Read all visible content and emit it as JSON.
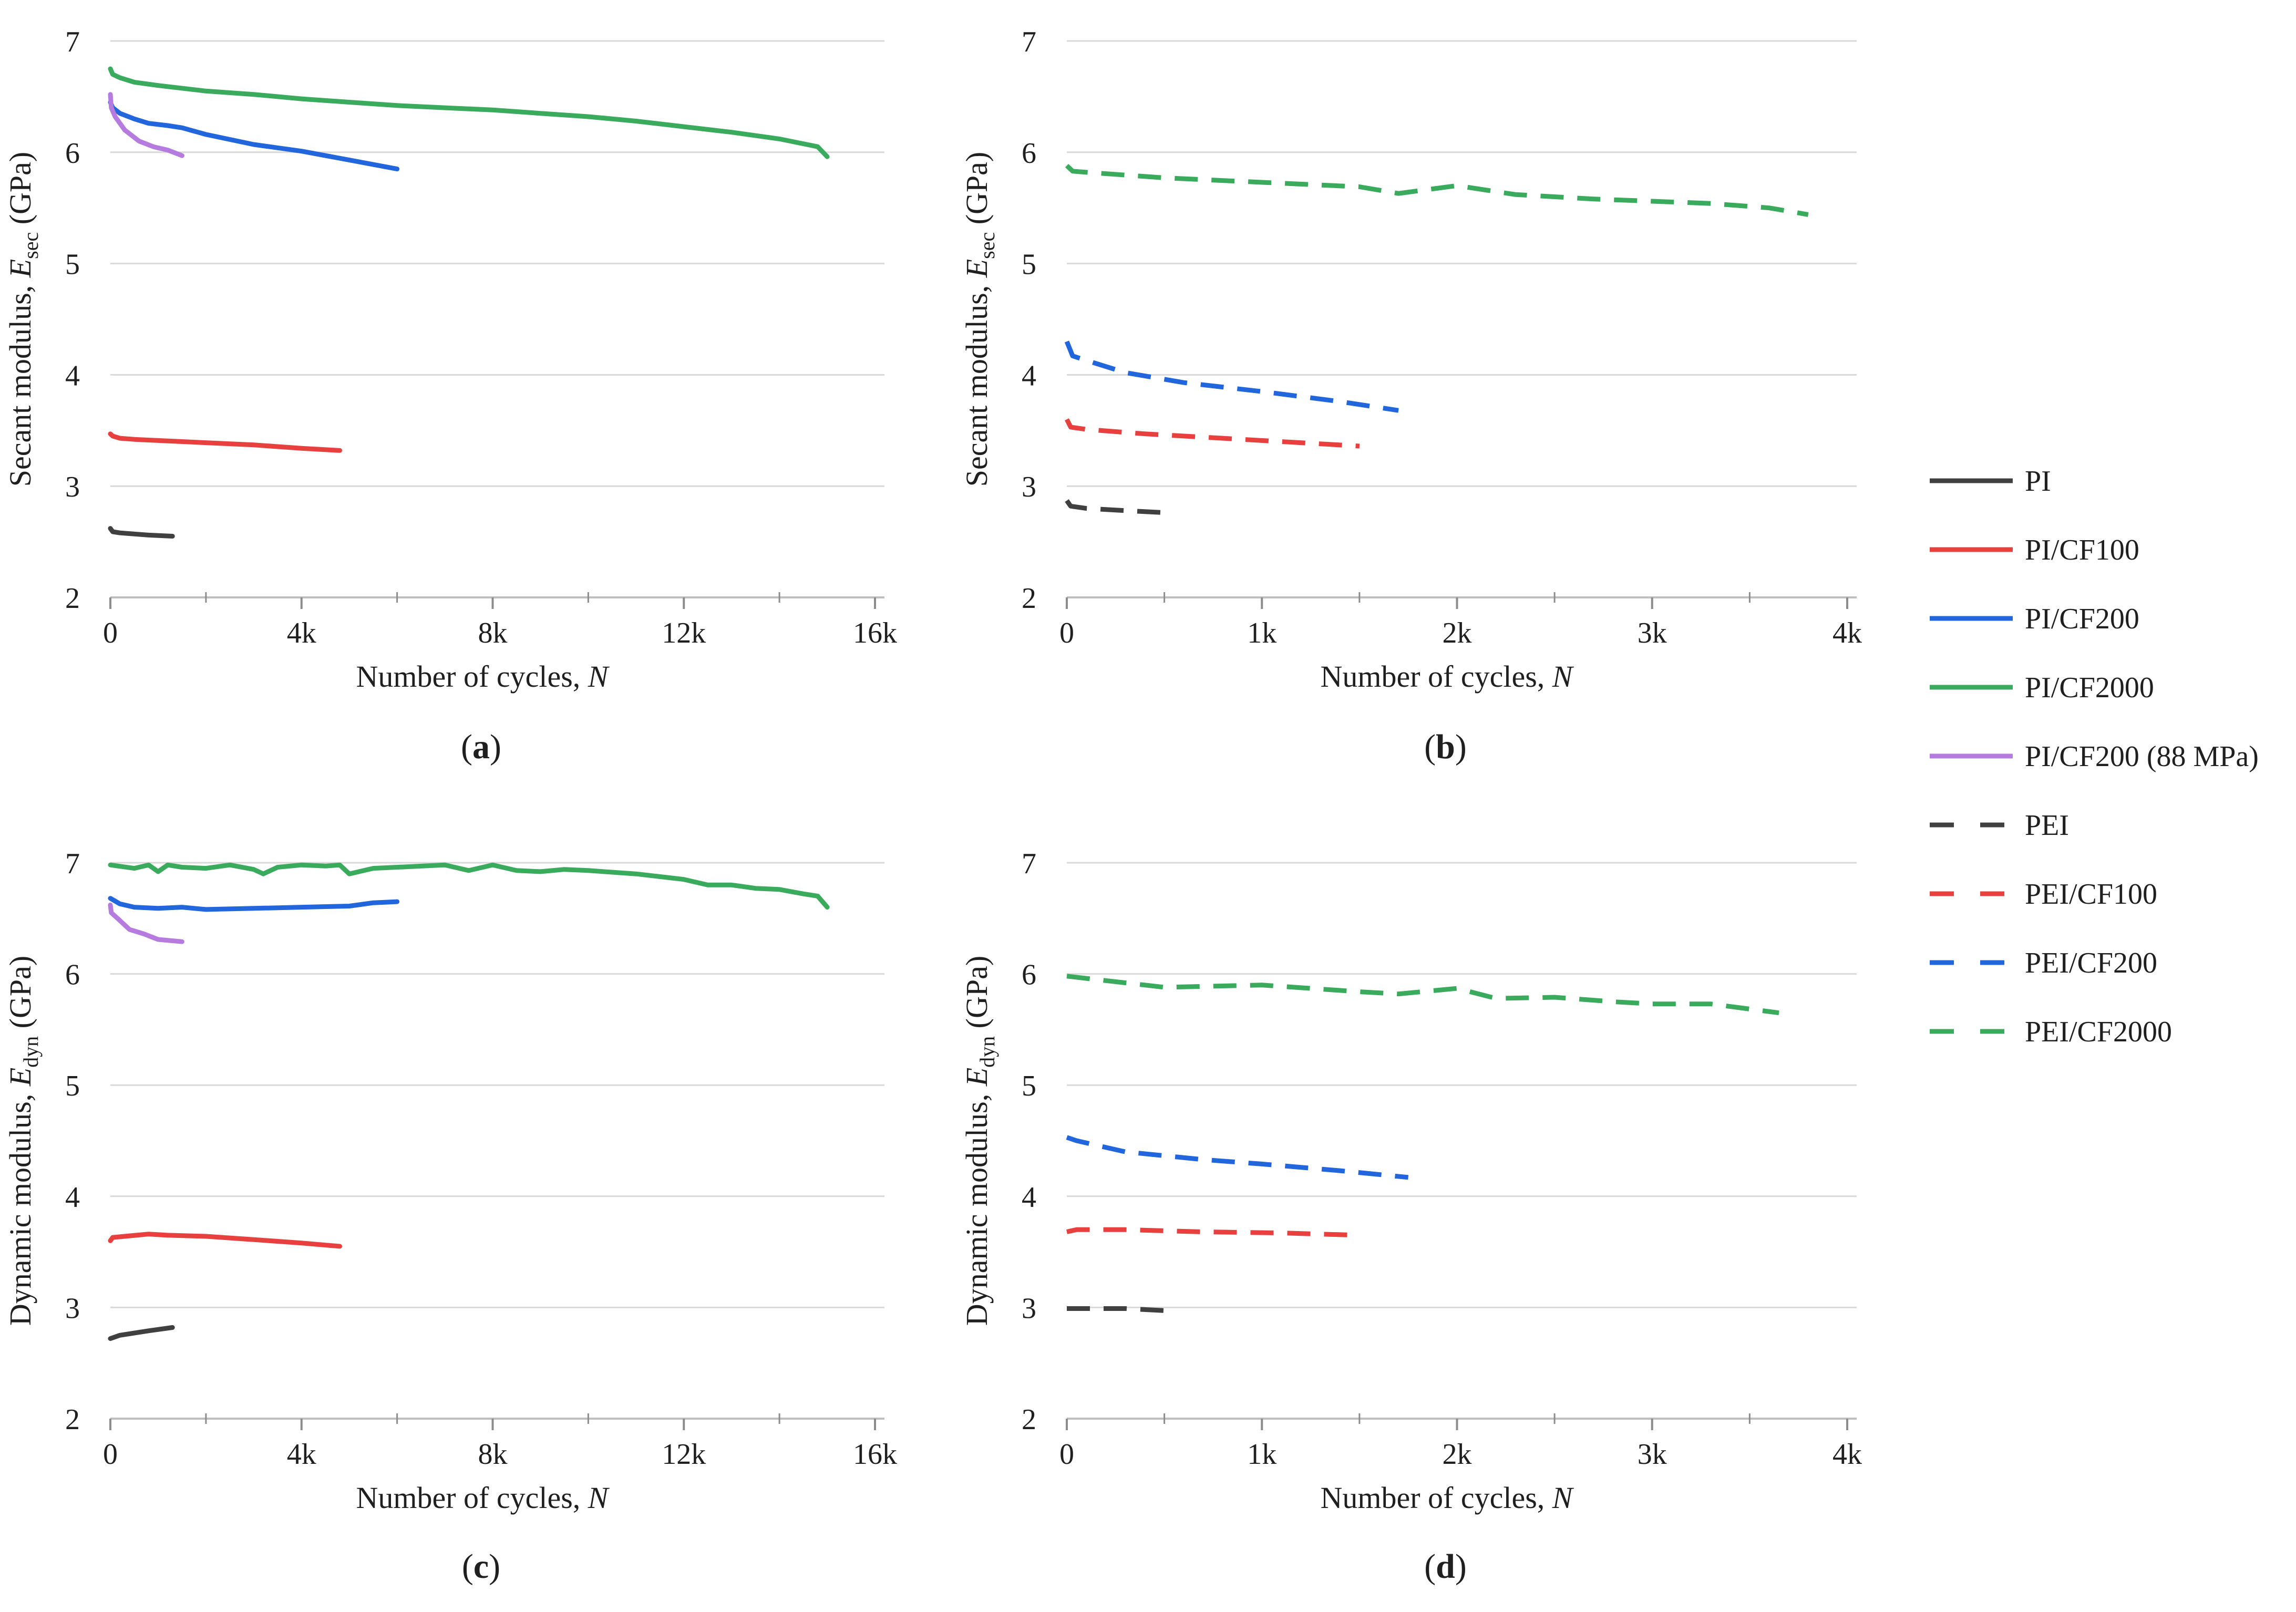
{
  "legend": [
    {
      "label": "PI",
      "color": "#404040",
      "dashed": false
    },
    {
      "label": "PI/CF100",
      "color": "#e8403f",
      "dashed": false
    },
    {
      "label": "PI/CF200",
      "color": "#2266dd",
      "dashed": false
    },
    {
      "label": "PI/CF2000",
      "color": "#3aaa5c",
      "dashed": false
    },
    {
      "label": "PI/CF200 (88 MPa)",
      "color": "#b57bde",
      "dashed": false
    },
    {
      "label": "PEI",
      "color": "#404040",
      "dashed": true
    },
    {
      "label": "PEI/CF100",
      "color": "#e8403f",
      "dashed": true
    },
    {
      "label": "PEI/CF200",
      "color": "#2266dd",
      "dashed": true
    },
    {
      "label": "PEI/CF2000",
      "color": "#3aaa5c",
      "dashed": true
    }
  ],
  "chart_data": [
    {
      "type": "line",
      "panel": "a",
      "panel_label": "(a)",
      "xlabel": "Number of cycles, N",
      "ylabel": "Secant modulus, E_sec (GPa)",
      "ylabel_parts": {
        "pre": "Secant modulus, ",
        "sym": "E",
        "sub": "sec",
        "post": " (GPa)"
      },
      "xlim": [
        0,
        16000
      ],
      "ylim": [
        2,
        7
      ],
      "xticks": [
        {
          "v": 0,
          "label": "0"
        },
        {
          "v": 4000,
          "label": "4k"
        },
        {
          "v": 8000,
          "label": "8k"
        },
        {
          "v": 12000,
          "label": "12k"
        },
        {
          "v": 16000,
          "label": "16k"
        }
      ],
      "yticks": [
        2,
        3,
        4,
        5,
        6,
        7
      ],
      "series": [
        {
          "name": "PI",
          "color": "#404040",
          "dashed": false,
          "x": [
            0,
            50,
            200,
            500,
            800,
            1300
          ],
          "y": [
            2.62,
            2.59,
            2.58,
            2.57,
            2.56,
            2.55
          ]
        },
        {
          "name": "PI/CF100",
          "color": "#e8403f",
          "dashed": false,
          "x": [
            0,
            50,
            200,
            500,
            1000,
            2000,
            3000,
            4000,
            4800
          ],
          "y": [
            3.47,
            3.45,
            3.43,
            3.42,
            3.41,
            3.39,
            3.37,
            3.34,
            3.32
          ]
        },
        {
          "name": "PI/CF200",
          "color": "#2266dd",
          "dashed": false,
          "x": [
            0,
            50,
            200,
            500,
            800,
            1200,
            1500,
            2000,
            3000,
            4000,
            5000,
            6000
          ],
          "y": [
            6.45,
            6.4,
            6.35,
            6.3,
            6.26,
            6.24,
            6.22,
            6.16,
            6.07,
            6.01,
            5.93,
            5.85
          ]
        },
        {
          "name": "PI/CF2000",
          "color": "#3aaa5c",
          "dashed": false,
          "x": [
            0,
            50,
            200,
            500,
            1000,
            2000,
            3000,
            4000,
            5000,
            6000,
            7000,
            8000,
            9000,
            10000,
            11000,
            12000,
            13000,
            14000,
            14800,
            15000
          ],
          "y": [
            6.75,
            6.7,
            6.67,
            6.63,
            6.6,
            6.55,
            6.52,
            6.48,
            6.45,
            6.42,
            6.4,
            6.38,
            6.35,
            6.32,
            6.28,
            6.23,
            6.18,
            6.12,
            6.05,
            5.96
          ]
        },
        {
          "name": "PI/CF200 (88 MPa)",
          "color": "#b57bde",
          "dashed": false,
          "x": [
            0,
            20,
            100,
            300,
            600,
            900,
            1200,
            1500
          ],
          "y": [
            6.52,
            6.4,
            6.32,
            6.2,
            6.1,
            6.05,
            6.02,
            5.97
          ]
        }
      ]
    },
    {
      "type": "line",
      "panel": "b",
      "panel_label": "(b)",
      "xlabel": "Number of cycles, N",
      "ylabel": "Secant modulus, E_sec (GPa)",
      "ylabel_parts": {
        "pre": "Secant modulus, ",
        "sym": "E",
        "sub": "sec",
        "post": " (GPa)"
      },
      "xlim": [
        0,
        4000
      ],
      "ylim": [
        2,
        7
      ],
      "xticks": [
        {
          "v": 0,
          "label": "0"
        },
        {
          "v": 1000,
          "label": "1k"
        },
        {
          "v": 2000,
          "label": "2k"
        },
        {
          "v": 3000,
          "label": "3k"
        },
        {
          "v": 4000,
          "label": "4k"
        }
      ],
      "yticks": [
        2,
        3,
        4,
        5,
        6,
        7
      ],
      "series": [
        {
          "name": "PEI",
          "color": "#404040",
          "dashed": true,
          "x": [
            0,
            20,
            100,
            300,
            520
          ],
          "y": [
            2.87,
            2.82,
            2.8,
            2.78,
            2.76
          ]
        },
        {
          "name": "PEI/CF100",
          "color": "#e8403f",
          "dashed": true,
          "x": [
            0,
            20,
            100,
            400,
            800,
            1200,
            1500
          ],
          "y": [
            3.6,
            3.53,
            3.51,
            3.47,
            3.43,
            3.39,
            3.36
          ]
        },
        {
          "name": "PEI/CF200",
          "color": "#2266dd",
          "dashed": true,
          "x": [
            0,
            30,
            100,
            300,
            600,
            1000,
            1400,
            1700
          ],
          "y": [
            4.3,
            4.17,
            4.13,
            4.02,
            3.93,
            3.85,
            3.76,
            3.68
          ]
        },
        {
          "name": "PEI/CF2000",
          "color": "#3aaa5c",
          "dashed": true,
          "x": [
            0,
            30,
            100,
            500,
            1000,
            1500,
            1700,
            2000,
            2300,
            2700,
            3000,
            3300,
            3600,
            3800
          ],
          "y": [
            5.88,
            5.83,
            5.82,
            5.77,
            5.73,
            5.69,
            5.63,
            5.7,
            5.62,
            5.58,
            5.56,
            5.54,
            5.5,
            5.44
          ]
        }
      ]
    },
    {
      "type": "line",
      "panel": "c",
      "panel_label": "(c)",
      "xlabel": "Number of cycles, N",
      "ylabel": "Dynamic modulus, E_dyn (GPa)",
      "ylabel_parts": {
        "pre": "Dynamic modulus, ",
        "sym": "E",
        "sub": "dyn",
        "post": " (GPa)"
      },
      "xlim": [
        0,
        16000
      ],
      "ylim": [
        2,
        7
      ],
      "xticks": [
        {
          "v": 0,
          "label": "0"
        },
        {
          "v": 4000,
          "label": "4k"
        },
        {
          "v": 8000,
          "label": "8k"
        },
        {
          "v": 12000,
          "label": "12k"
        },
        {
          "v": 16000,
          "label": "16k"
        }
      ],
      "yticks": [
        2,
        3,
        4,
        5,
        6,
        7
      ],
      "series": [
        {
          "name": "PI",
          "color": "#404040",
          "dashed": false,
          "x": [
            0,
            200,
            500,
            800,
            1300
          ],
          "y": [
            2.72,
            2.75,
            2.77,
            2.79,
            2.82
          ]
        },
        {
          "name": "PI/CF100",
          "color": "#e8403f",
          "dashed": false,
          "x": [
            0,
            50,
            300,
            800,
            1200,
            2000,
            3000,
            4000,
            4800
          ],
          "y": [
            3.6,
            3.63,
            3.64,
            3.66,
            3.65,
            3.64,
            3.61,
            3.58,
            3.55
          ]
        },
        {
          "name": "PI/CF200",
          "color": "#2266dd",
          "dashed": false,
          "x": [
            0,
            200,
            500,
            1000,
            1500,
            2000,
            3000,
            4000,
            5000,
            5500,
            6000
          ],
          "y": [
            6.68,
            6.63,
            6.6,
            6.59,
            6.6,
            6.58,
            6.59,
            6.6,
            6.61,
            6.64,
            6.65
          ]
        },
        {
          "name": "PI/CF2000",
          "color": "#3aaa5c",
          "dashed": false,
          "x": [
            0,
            500,
            800,
            1000,
            1200,
            1500,
            2000,
            2500,
            3000,
            3200,
            3500,
            4000,
            4500,
            4800,
            5000,
            5500,
            6000,
            7000,
            7500,
            8000,
            8500,
            9000,
            9500,
            10000,
            11000,
            12000,
            12500,
            13000,
            13500,
            14000,
            14500,
            14800,
            15000
          ],
          "y": [
            6.98,
            6.95,
            6.98,
            6.92,
            6.98,
            6.96,
            6.95,
            6.98,
            6.94,
            6.9,
            6.96,
            6.98,
            6.97,
            6.98,
            6.9,
            6.95,
            6.96,
            6.98,
            6.93,
            6.98,
            6.93,
            6.92,
            6.94,
            6.93,
            6.9,
            6.85,
            6.8,
            6.8,
            6.77,
            6.76,
            6.72,
            6.7,
            6.6
          ]
        },
        {
          "name": "PI/CF200 (88 MPa)",
          "color": "#b57bde",
          "dashed": false,
          "x": [
            0,
            20,
            150,
            400,
            700,
            1000,
            1500
          ],
          "y": [
            6.62,
            6.55,
            6.5,
            6.4,
            6.36,
            6.31,
            6.29
          ]
        }
      ]
    },
    {
      "type": "line",
      "panel": "d",
      "panel_label": "(d)",
      "xlabel": "Number of cycles, N",
      "ylabel": "Dynamic modulus, E_dyn (GPa)",
      "ylabel_parts": {
        "pre": "Dynamic modulus, ",
        "sym": "E",
        "sub": "dyn",
        "post": " (GPa)"
      },
      "xlim": [
        0,
        4000
      ],
      "ylim": [
        2,
        7
      ],
      "xticks": [
        {
          "v": 0,
          "label": "0"
        },
        {
          "v": 1000,
          "label": "1k"
        },
        {
          "v": 2000,
          "label": "2k"
        },
        {
          "v": 3000,
          "label": "3k"
        },
        {
          "v": 4000,
          "label": "4k"
        }
      ],
      "yticks": [
        2,
        3,
        4,
        5,
        6,
        7
      ],
      "series": [
        {
          "name": "PEI",
          "color": "#404040",
          "dashed": true,
          "x": [
            0,
            100,
            300,
            520
          ],
          "y": [
            2.99,
            2.99,
            2.99,
            2.97
          ]
        },
        {
          "name": "PEI/CF100",
          "color": "#e8403f",
          "dashed": true,
          "x": [
            0,
            50,
            300,
            700,
            1100,
            1500
          ],
          "y": [
            3.68,
            3.7,
            3.7,
            3.68,
            3.67,
            3.65
          ]
        },
        {
          "name": "PEI/CF200",
          "color": "#2266dd",
          "dashed": true,
          "x": [
            0,
            50,
            300,
            700,
            1000,
            1400,
            1750
          ],
          "y": [
            4.53,
            4.5,
            4.4,
            4.33,
            4.29,
            4.23,
            4.17
          ]
        },
        {
          "name": "PEI/CF2000",
          "color": "#3aaa5c",
          "dashed": true,
          "x": [
            0,
            100,
            500,
            1000,
            1500,
            1700,
            2000,
            2200,
            2500,
            2800,
            3000,
            3300,
            3650
          ],
          "y": [
            5.98,
            5.96,
            5.88,
            5.9,
            5.84,
            5.82,
            5.87,
            5.78,
            5.79,
            5.75,
            5.73,
            5.73,
            5.65
          ]
        }
      ]
    }
  ]
}
